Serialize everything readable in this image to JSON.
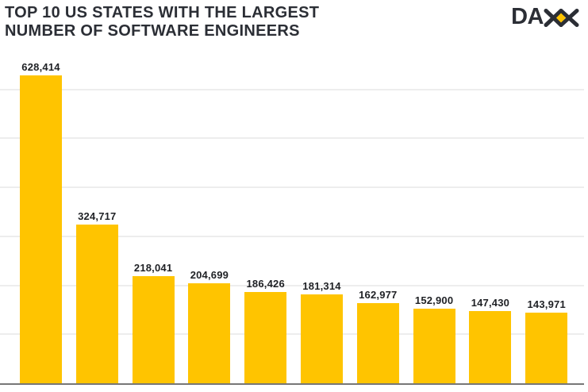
{
  "header": {
    "title_line1": "TOP 10 US STATES WITH THE LARGEST",
    "title_line2": "NUMBER OF SOFTWARE ENGINEERS",
    "logo_text_da": "DA",
    "logo_name": "DAXX"
  },
  "colors": {
    "bar": "#FFC400",
    "title": "#2B2E35",
    "value_label": "#1F2125",
    "gridline": "#EDEDED",
    "baseline": "#777777",
    "logo_letters": "#2B2E35",
    "logo_diamond": "#FFC400"
  },
  "chart_data": {
    "type": "bar",
    "title": "TOP 10 US STATES WITH THE LARGEST NUMBER OF SOFTWARE ENGINEERS",
    "values": [
      628414,
      324717,
      218041,
      204699,
      186426,
      181314,
      162977,
      152900,
      147430,
      143971
    ],
    "value_labels": [
      "628,414",
      "324,717",
      "218,041",
      "204,699",
      "186,426",
      "181,314",
      "162,977",
      "152,900",
      "147,430",
      "143,971"
    ],
    "xlabel": "",
    "ylabel": "",
    "x_tick_labels_visible": false,
    "y_tick_labels_visible": false,
    "gridlines": {
      "interval": 100000,
      "max": 600000,
      "orientation": "horizontal"
    },
    "ylim": [
      0,
      650000
    ],
    "legend": "none"
  }
}
